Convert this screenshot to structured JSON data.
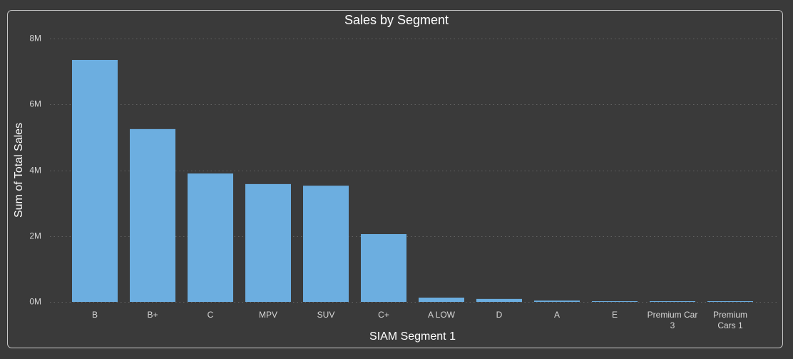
{
  "chart_data": {
    "type": "bar",
    "title": "Sales by Segment",
    "xlabel": "SIAM Segment 1",
    "ylabel": "Sum of Total Sales",
    "categories": [
      "B",
      "B+",
      "C",
      "MPV",
      "SUV",
      "C+",
      "A LOW",
      "D",
      "A",
      "E",
      "Premium Car 3",
      "Premium Cars 1"
    ],
    "values": [
      7350000,
      5250000,
      3900000,
      3580000,
      3530000,
      2060000,
      130000,
      90000,
      40000,
      20000,
      20000,
      20000
    ],
    "ylim": [
      0,
      8000000
    ],
    "yticks": [
      0,
      2000000,
      4000000,
      6000000,
      8000000
    ],
    "ytick_labels": [
      "0M",
      "2M",
      "4M",
      "6M",
      "8M"
    ],
    "grid": true
  },
  "colors": {
    "background": "#3a3a3a",
    "frame": "#c8c8c8",
    "bar": "#6caee0",
    "gridline": "#626262",
    "title_text": "#ffffff",
    "tick_text": "#d6d6d6"
  }
}
